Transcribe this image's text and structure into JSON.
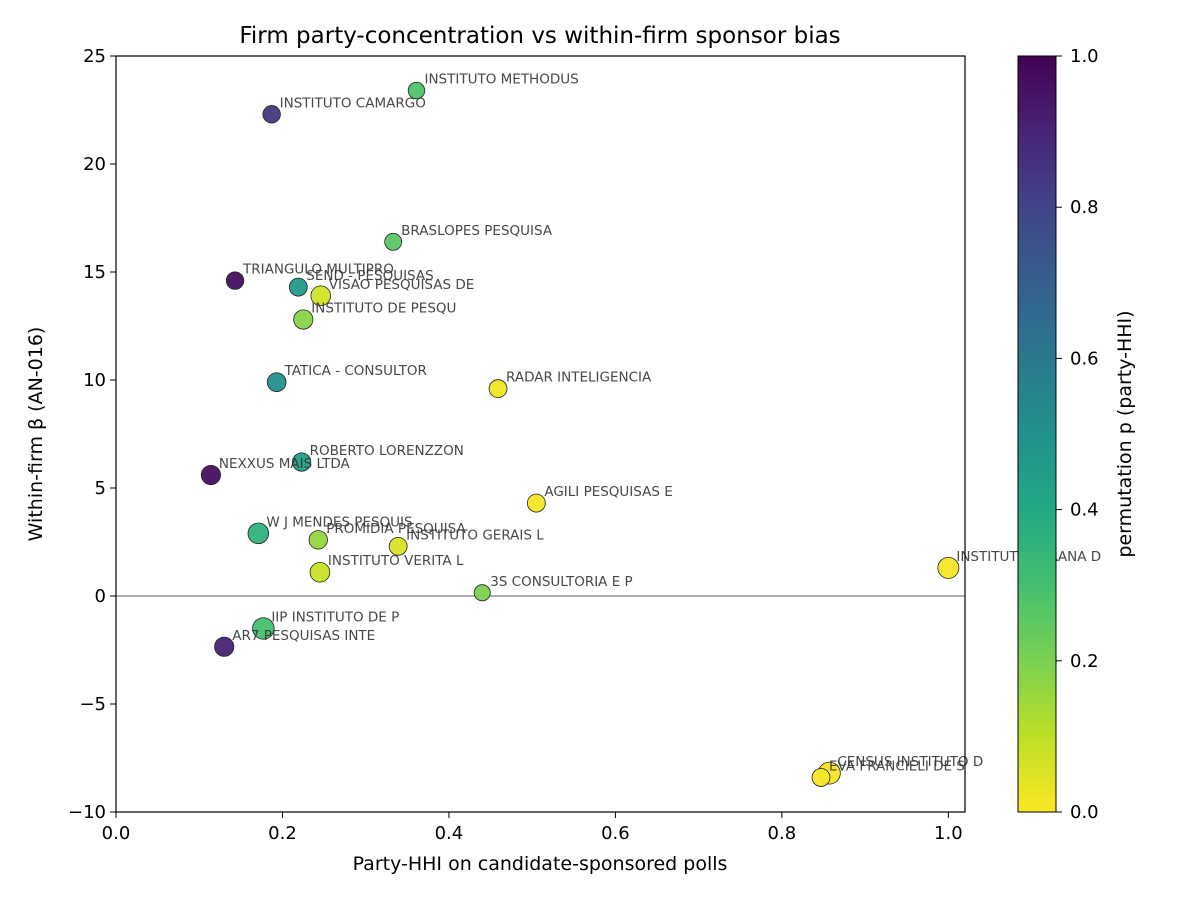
{
  "chart_data": {
    "type": "scatter",
    "title": "Firm party-concentration vs within-firm sponsor bias",
    "xlabel": "Party-HHI on candidate-sponsored polls",
    "ylabel": "Within-firm β (AN-016)",
    "xlim": [
      0.0,
      1.02
    ],
    "ylim": [
      -10,
      25
    ],
    "xticks": [
      0.0,
      0.2,
      0.4,
      0.6,
      0.8,
      1.0
    ],
    "xtick_labels": [
      "0.0",
      "0.2",
      "0.4",
      "0.6",
      "0.8",
      "1.0"
    ],
    "yticks": [
      -10,
      -5,
      0,
      5,
      10,
      15,
      20,
      25
    ],
    "ytick_labels": [
      "−10",
      "−5",
      "0",
      "5",
      "10",
      "15",
      "20",
      "25"
    ],
    "reference_line_y": 0,
    "grid": false,
    "colormap": "viridis_r",
    "colorbar": {
      "label": "permutation p (party-HHI)",
      "range": [
        0.0,
        1.0
      ],
      "ticks": [
        0.0,
        0.2,
        0.4,
        0.6,
        0.8,
        1.0
      ],
      "tick_labels": [
        "0.0",
        "0.2",
        "0.4",
        "0.6",
        "0.8",
        "1.0"
      ]
    },
    "points": [
      {
        "label": "INSTITUTO METHODUS",
        "x": 0.361,
        "y": 23.4,
        "p": 0.28,
        "size": 0.4
      },
      {
        "label": "INSTITUTO CAMARGO",
        "x": 0.187,
        "y": 22.3,
        "p": 0.84,
        "size": 0.5
      },
      {
        "label": "BRASLOPES PESQUISA",
        "x": 0.333,
        "y": 16.4,
        "p": 0.26,
        "size": 0.45
      },
      {
        "label": "TRIANGULO MULTIPRO",
        "x": 0.143,
        "y": 14.6,
        "p": 0.96,
        "size": 0.5
      },
      {
        "label": "SEND - PESQUISAS",
        "x": 0.219,
        "y": 14.3,
        "p": 0.46,
        "size": 0.55
      },
      {
        "label": "VISAO PESQUISAS DE",
        "x": 0.246,
        "y": 13.9,
        "p": 0.07,
        "size": 0.75
      },
      {
        "label": "INSTITUTO DE PESQU",
        "x": 0.225,
        "y": 12.8,
        "p": 0.18,
        "size": 0.7
      },
      {
        "label": "TATICA - CONSULTOR",
        "x": 0.193,
        "y": 9.9,
        "p": 0.5,
        "size": 0.65
      },
      {
        "label": "RADAR INTELIGENCIA",
        "x": 0.459,
        "y": 9.6,
        "p": 0.02,
        "size": 0.55
      },
      {
        "label": "ROBERTO LORENZZON",
        "x": 0.223,
        "y": 6.2,
        "p": 0.44,
        "size": 0.6
      },
      {
        "label": "NEXXUS MAIS LTDA",
        "x": 0.114,
        "y": 5.6,
        "p": 0.96,
        "size": 0.7
      },
      {
        "label": "AGILI PESQUISAS E",
        "x": 0.505,
        "y": 4.3,
        "p": 0.01,
        "size": 0.55
      },
      {
        "label": "W J MENDES PESQUIS",
        "x": 0.171,
        "y": 2.9,
        "p": 0.36,
        "size": 0.85
      },
      {
        "label": "PROMIDIA PESQUISA",
        "x": 0.243,
        "y": 2.6,
        "p": 0.16,
        "size": 0.6
      },
      {
        "label": "INSTITUTO GERAIS L",
        "x": 0.339,
        "y": 2.3,
        "p": 0.06,
        "size": 0.55
      },
      {
        "label": "INSTITUTO VERITA L",
        "x": 0.245,
        "y": 1.1,
        "p": 0.08,
        "size": 0.75
      },
      {
        "label": "INSTITUTO PARANA D",
        "x": 1.0,
        "y": 1.3,
        "p": 0.01,
        "size": 0.9
      },
      {
        "label": "3S CONSULTORIA E P",
        "x": 0.44,
        "y": 0.15,
        "p": 0.2,
        "size": 0.35
      },
      {
        "label": "IIP INSTITUTO DE P",
        "x": 0.177,
        "y": -1.5,
        "p": 0.3,
        "size": 0.95
      },
      {
        "label": "AR7 PESQUISAS INTE",
        "x": 0.13,
        "y": -2.35,
        "p": 0.9,
        "size": 0.7
      },
      {
        "label": "CENSUS INSTITUTO D",
        "x": 0.857,
        "y": -8.2,
        "p": 0.01,
        "size": 1.0
      },
      {
        "label": "EVA FRANCIELI DE S",
        "x": 0.847,
        "y": -8.4,
        "p": 0.01,
        "size": 0.55
      }
    ]
  }
}
